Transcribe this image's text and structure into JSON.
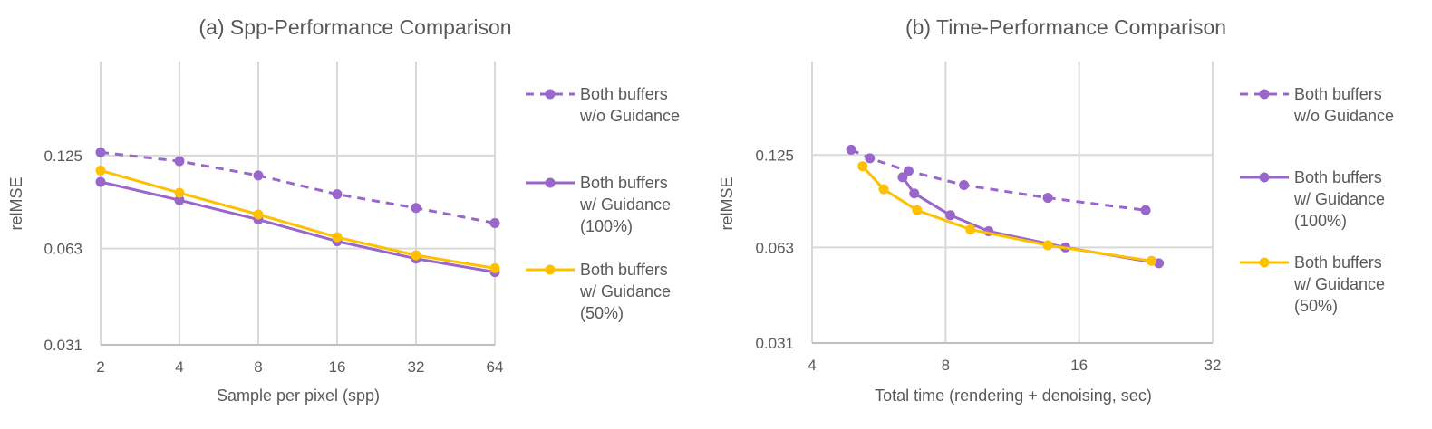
{
  "chart_data": [
    {
      "type": "line",
      "title": "(a) Spp-Performance Comparison",
      "xlabel": "Sample per pixel (spp)",
      "ylabel": "relMSE",
      "x_scale": "log2",
      "y_scale": "log2",
      "x_ticks": [
        "2",
        "4",
        "8",
        "16",
        "32",
        "64"
      ],
      "y_ticks": [
        "0.031",
        "0.063",
        "0.125"
      ],
      "xlim": [
        2,
        64
      ],
      "ylim": [
        0.031,
        0.25
      ],
      "grid": true,
      "legend_position": "right",
      "series": [
        {
          "name": "Both buffers w/o Guidance",
          "style": "dashed",
          "color": "#9966cc",
          "x": [
            2,
            4,
            8,
            16,
            32,
            64
          ],
          "y": [
            0.128,
            0.12,
            0.108,
            0.094,
            0.085,
            0.076
          ]
        },
        {
          "name": "Both buffers w/ Guidance (100%)",
          "style": "solid",
          "color": "#9966cc",
          "x": [
            2,
            4,
            8,
            16,
            32,
            64
          ],
          "y": [
            0.103,
            0.09,
            0.078,
            0.0665,
            0.0585,
            0.053
          ]
        },
        {
          "name": "Both buffers w/ Guidance (50%)",
          "style": "solid",
          "color": "#ffc000",
          "x": [
            2,
            4,
            8,
            16,
            32,
            64
          ],
          "y": [
            0.112,
            0.095,
            0.081,
            0.0685,
            0.06,
            0.0545
          ]
        }
      ]
    },
    {
      "type": "line",
      "title": "(b) Time-Performance Comparison",
      "xlabel": "Total time (rendering + denoising, sec)",
      "ylabel": "relMSE",
      "x_scale": "log2",
      "y_scale": "log2",
      "x_ticks": [
        "4",
        "8",
        "16",
        "32"
      ],
      "y_ticks": [
        "0.031",
        "0.063",
        "0.125"
      ],
      "xlim": [
        4,
        32
      ],
      "ylim": [
        0.031,
        0.25
      ],
      "grid": true,
      "legend_position": "right",
      "series": [
        {
          "name": "Both buffers w/o Guidance",
          "style": "dashed",
          "color": "#9966cc",
          "x": [
            4.9,
            5.4,
            6.6,
            8.8,
            13.6,
            22.6
          ],
          "y": [
            0.13,
            0.122,
            0.111,
            0.1,
            0.091,
            0.083
          ]
        },
        {
          "name": "Both buffers w/ Guidance (100%)",
          "style": "solid",
          "color": "#9966cc",
          "x": [
            6.4,
            6.8,
            8.2,
            10.0,
            14.9,
            24.2
          ],
          "y": [
            0.106,
            0.094,
            0.08,
            0.071,
            0.063,
            0.056
          ]
        },
        {
          "name": "Both buffers w/ Guidance (50%)",
          "style": "solid",
          "color": "#ffc000",
          "x": [
            5.2,
            5.8,
            6.9,
            9.1,
            13.6,
            23.3
          ],
          "y": [
            0.115,
            0.097,
            0.083,
            0.072,
            0.064,
            0.057
          ]
        }
      ]
    }
  ],
  "legend_lines": {
    "s0": [
      "Both buffers",
      "w/o Guidance"
    ],
    "s1": [
      "Both buffers",
      "w/ Guidance",
      "(100%)"
    ],
    "s2": [
      "Both buffers",
      "w/ Guidance",
      "(50%)"
    ]
  }
}
